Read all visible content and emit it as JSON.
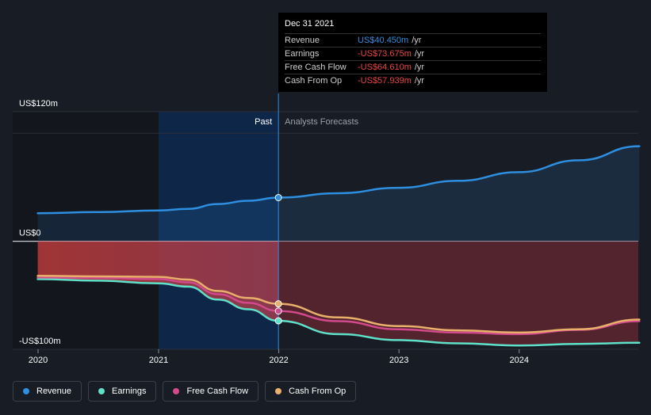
{
  "chart_data": {
    "type": "line",
    "y_unit": "US$ m",
    "ylim": [
      -100,
      120
    ],
    "xlim": [
      "2019-10-01",
      "2024-12-31"
    ],
    "y_tick_labels": [
      {
        "value": 120,
        "label": "US$120m"
      },
      {
        "value": 0,
        "label": "US$0"
      },
      {
        "value": -100,
        "label": "-US$100m"
      }
    ],
    "x_tick_labels": [
      {
        "date": "2020-01-01",
        "label": "2020"
      },
      {
        "date": "2021-01-01",
        "label": "2021"
      },
      {
        "date": "2022-01-01",
        "label": "2022"
      },
      {
        "date": "2023-01-01",
        "label": "2023"
      },
      {
        "date": "2024-01-01",
        "label": "2024"
      }
    ],
    "past_label": "Past",
    "forecast_label": "Analysts Forecasts",
    "divider_date": "2021-12-31",
    "series": [
      {
        "name": "Revenue",
        "color": "#2e8fe0",
        "points": [
          [
            "2019-12-31",
            26.0
          ],
          [
            "2020-06-30",
            27.0
          ],
          [
            "2020-12-31",
            28.5
          ],
          [
            "2021-03-31",
            30.0
          ],
          [
            "2021-06-30",
            34.5
          ],
          [
            "2021-09-30",
            37.5
          ],
          [
            "2021-12-31",
            40.45
          ],
          [
            "2022-06-30",
            44.5
          ],
          [
            "2022-12-31",
            49.5
          ],
          [
            "2023-06-30",
            56.0
          ],
          [
            "2023-12-31",
            64.0
          ],
          [
            "2024-06-30",
            75.0
          ],
          [
            "2024-12-31",
            88.0
          ]
        ]
      },
      {
        "name": "Earnings",
        "color": "#5fe0c8",
        "points": [
          [
            "2019-12-31",
            -35.0
          ],
          [
            "2020-06-30",
            -36.5
          ],
          [
            "2020-12-31",
            -39.0
          ],
          [
            "2021-03-31",
            -42.0
          ],
          [
            "2021-06-30",
            -54.0
          ],
          [
            "2021-09-30",
            -63.0
          ],
          [
            "2021-12-31",
            -73.675
          ],
          [
            "2022-06-30",
            -86.0
          ],
          [
            "2022-12-31",
            -91.5
          ],
          [
            "2023-06-30",
            -94.5
          ],
          [
            "2023-12-31",
            -96.5
          ],
          [
            "2024-06-30",
            -95.0
          ],
          [
            "2024-12-31",
            -94.0
          ]
        ]
      },
      {
        "name": "Free Cash Flow",
        "color": "#d04a8c",
        "points": [
          [
            "2019-12-31",
            -33.5
          ],
          [
            "2020-06-30",
            -34.0
          ],
          [
            "2020-12-31",
            -35.0
          ],
          [
            "2021-03-31",
            -38.0
          ],
          [
            "2021-06-30",
            -49.0
          ],
          [
            "2021-09-30",
            -57.0
          ],
          [
            "2021-12-31",
            -64.61
          ],
          [
            "2022-06-30",
            -74.0
          ],
          [
            "2022-12-31",
            -81.5
          ],
          [
            "2023-06-30",
            -84.5
          ],
          [
            "2023-12-31",
            -86.0
          ],
          [
            "2024-06-30",
            -82.0
          ],
          [
            "2024-12-31",
            -74.0
          ]
        ]
      },
      {
        "name": "Cash From Op",
        "color": "#e8b06a",
        "points": [
          [
            "2019-12-31",
            -32.0
          ],
          [
            "2020-06-30",
            -32.5
          ],
          [
            "2020-12-31",
            -33.0
          ],
          [
            "2021-03-31",
            -35.5
          ],
          [
            "2021-06-30",
            -46.0
          ],
          [
            "2021-09-30",
            -52.5
          ],
          [
            "2021-12-31",
            -57.939
          ],
          [
            "2022-06-30",
            -70.5
          ],
          [
            "2022-12-31",
            -78.5
          ],
          [
            "2023-06-30",
            -82.5
          ],
          [
            "2023-12-31",
            -84.5
          ],
          [
            "2024-06-30",
            -81.5
          ],
          [
            "2024-12-31",
            -72.5
          ]
        ]
      }
    ],
    "tooltip": {
      "date": "Dec 31 2021",
      "rows": [
        {
          "label": "Revenue",
          "value": "US$40.450m",
          "unit": "/yr",
          "color": "#2e8fe0"
        },
        {
          "label": "Earnings",
          "value": "-US$73.675m",
          "unit": "/yr",
          "color": "#e84545"
        },
        {
          "label": "Free Cash Flow",
          "value": "-US$64.610m",
          "unit": "/yr",
          "color": "#e84545"
        },
        {
          "label": "Cash From Op",
          "value": "-US$57.939m",
          "unit": "/yr",
          "color": "#e84545"
        }
      ]
    }
  },
  "legend": [
    {
      "label": "Revenue",
      "color": "#2e8fe0"
    },
    {
      "label": "Earnings",
      "color": "#5fe0c8"
    },
    {
      "label": "Free Cash Flow",
      "color": "#d04a8c"
    },
    {
      "label": "Cash From Op",
      "color": "#e8b06a"
    }
  ]
}
